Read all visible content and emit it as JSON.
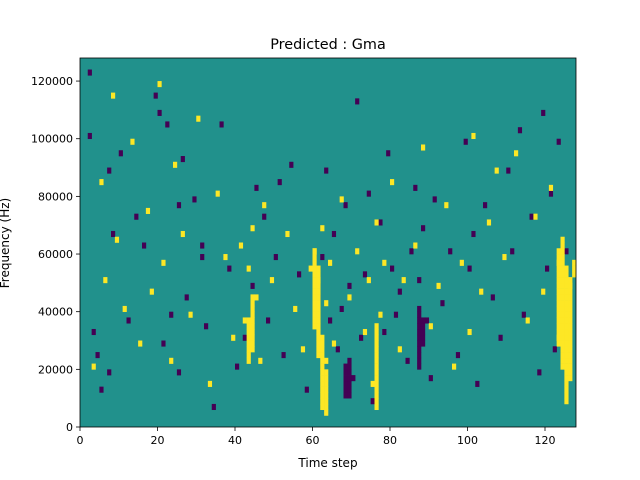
{
  "chart_data": {
    "type": "heatmap",
    "title": "Predicted : Gma",
    "xlabel": "Time step",
    "ylabel": "Frequency (Hz)",
    "xlim": [
      0,
      128
    ],
    "ylim": [
      0,
      128000
    ],
    "xticks": [
      0,
      20,
      40,
      60,
      80,
      100,
      120
    ],
    "yticks": [
      0,
      20000,
      40000,
      60000,
      80000,
      100000,
      120000
    ],
    "ytick_labels": [
      "0",
      "20000",
      "40000",
      "60000",
      "80000",
      "100000",
      "120000"
    ],
    "grid": false,
    "colormap": "viridis",
    "colors": {
      "background": "#21918c",
      "low": "#440154",
      "high": "#fde725"
    },
    "n_time_steps": 128,
    "n_frequency_bins": 64,
    "background_value": 0,
    "low_cells": [
      [
        2,
        61
      ],
      [
        2,
        50
      ],
      [
        7,
        9
      ],
      [
        8,
        33
      ],
      [
        3,
        16
      ],
      [
        4,
        12
      ],
      [
        5,
        6
      ],
      [
        7,
        44
      ],
      [
        10,
        47
      ],
      [
        12,
        18
      ],
      [
        14,
        36
      ],
      [
        16,
        31
      ],
      [
        19,
        57
      ],
      [
        20,
        54
      ],
      [
        21,
        14
      ],
      [
        22,
        52
      ],
      [
        23,
        19
      ],
      [
        25,
        38
      ],
      [
        25,
        9
      ],
      [
        26,
        46
      ],
      [
        27,
        22
      ],
      [
        29,
        39
      ],
      [
        31,
        29
      ],
      [
        31,
        31
      ],
      [
        32,
        17
      ],
      [
        34,
        3
      ],
      [
        36,
        52
      ],
      [
        38,
        27
      ],
      [
        40,
        10
      ],
      [
        42,
        15
      ],
      [
        44,
        24
      ],
      [
        45,
        41
      ],
      [
        47,
        36
      ],
      [
        48,
        18
      ],
      [
        50,
        29
      ],
      [
        51,
        42
      ],
      [
        52,
        12
      ],
      [
        54,
        45
      ],
      [
        56,
        26
      ],
      [
        58,
        6
      ],
      [
        61,
        22
      ],
      [
        62,
        29
      ],
      [
        63,
        44
      ],
      [
        64,
        18
      ],
      [
        65,
        33
      ],
      [
        66,
        13
      ],
      [
        67,
        20
      ],
      [
        68,
        38
      ],
      [
        69,
        24
      ],
      [
        70,
        8
      ],
      [
        71,
        56
      ],
      [
        72,
        15
      ],
      [
        73,
        26
      ],
      [
        74,
        40
      ],
      [
        75,
        4
      ],
      [
        77,
        35
      ],
      [
        78,
        16
      ],
      [
        79,
        47
      ],
      [
        80,
        27
      ],
      [
        81,
        19
      ],
      [
        82,
        23
      ],
      [
        84,
        11
      ],
      [
        85,
        30
      ],
      [
        86,
        41
      ],
      [
        87,
        25
      ],
      [
        88,
        34
      ],
      [
        89,
        18
      ],
      [
        90,
        8
      ],
      [
        91,
        39
      ],
      [
        93,
        21
      ],
      [
        95,
        30
      ],
      [
        97,
        12
      ],
      [
        99,
        49
      ],
      [
        100,
        27
      ],
      [
        101,
        33
      ],
      [
        102,
        7
      ],
      [
        104,
        38
      ],
      [
        106,
        22
      ],
      [
        108,
        15
      ],
      [
        110,
        44
      ],
      [
        111,
        30
      ],
      [
        113,
        51
      ],
      [
        114,
        19
      ],
      [
        116,
        36
      ],
      [
        118,
        9
      ],
      [
        119,
        54
      ],
      [
        120,
        27
      ],
      [
        121,
        40
      ],
      [
        122,
        13
      ],
      [
        123,
        49
      ],
      [
        125,
        30
      ]
    ],
    "high_cells": [
      [
        3,
        10
      ],
      [
        5,
        42
      ],
      [
        6,
        25
      ],
      [
        8,
        57
      ],
      [
        9,
        32
      ],
      [
        11,
        20
      ],
      [
        13,
        49
      ],
      [
        15,
        14
      ],
      [
        17,
        37
      ],
      [
        18,
        23
      ],
      [
        20,
        59
      ],
      [
        21,
        28
      ],
      [
        23,
        11
      ],
      [
        24,
        45
      ],
      [
        26,
        33
      ],
      [
        28,
        19
      ],
      [
        30,
        53
      ],
      [
        33,
        7
      ],
      [
        35,
        40
      ],
      [
        37,
        29
      ],
      [
        39,
        15
      ],
      [
        41,
        31
      ],
      [
        42,
        18
      ],
      [
        43,
        27
      ],
      [
        44,
        34
      ],
      [
        45,
        22
      ],
      [
        46,
        11
      ],
      [
        47,
        38
      ],
      [
        49,
        25
      ],
      [
        53,
        33
      ],
      [
        55,
        20
      ],
      [
        57,
        13
      ],
      [
        59,
        27
      ],
      [
        60,
        17
      ],
      [
        60,
        30
      ],
      [
        61,
        25
      ],
      [
        62,
        34
      ],
      [
        63,
        11
      ],
      [
        63,
        21
      ],
      [
        64,
        28
      ],
      [
        65,
        14
      ],
      [
        67,
        39
      ],
      [
        69,
        22
      ],
      [
        71,
        30
      ],
      [
        73,
        16
      ],
      [
        74,
        25
      ],
      [
        75,
        7
      ],
      [
        76,
        35
      ],
      [
        77,
        19
      ],
      [
        78,
        28
      ],
      [
        80,
        42
      ],
      [
        82,
        13
      ],
      [
        83,
        25
      ],
      [
        86,
        31
      ],
      [
        88,
        48
      ],
      [
        90,
        17
      ],
      [
        92,
        24
      ],
      [
        94,
        38
      ],
      [
        96,
        10
      ],
      [
        98,
        28
      ],
      [
        100,
        16
      ],
      [
        101,
        50
      ],
      [
        103,
        23
      ],
      [
        105,
        35
      ],
      [
        107,
        44
      ],
      [
        109,
        29
      ],
      [
        112,
        47
      ],
      [
        115,
        18
      ],
      [
        117,
        36
      ],
      [
        119,
        23
      ],
      [
        121,
        41
      ],
      [
        123,
        15
      ],
      [
        123,
        28
      ],
      [
        124,
        19
      ],
      [
        124,
        26
      ],
      [
        125,
        12
      ],
      [
        126,
        24
      ]
    ],
    "high_runs": [
      {
        "t": 43,
        "f_start": 11,
        "f_end": 18
      },
      {
        "t": 44,
        "f_start": 13,
        "f_end": 22
      },
      {
        "t": 60,
        "f_start": 17,
        "f_end": 30
      },
      {
        "t": 61,
        "f_start": 12,
        "f_end": 27
      },
      {
        "t": 62,
        "f_start": 3,
        "f_end": 15
      },
      {
        "t": 63,
        "f_start": 2,
        "f_end": 9
      },
      {
        "t": 76,
        "f_start": 3,
        "f_end": 17
      },
      {
        "t": 123,
        "f_start": 14,
        "f_end": 30
      },
      {
        "t": 124,
        "f_start": 10,
        "f_end": 32
      },
      {
        "t": 125,
        "f_start": 4,
        "f_end": 27
      },
      {
        "t": 126,
        "f_start": 8,
        "f_end": 25
      },
      {
        "t": 127,
        "f_start": 26,
        "f_end": 28
      }
    ],
    "low_runs": [
      {
        "t": 68,
        "f_start": 5,
        "f_end": 10
      },
      {
        "t": 69,
        "f_start": 5,
        "f_end": 11
      },
      {
        "t": 87,
        "f_start": 10,
        "f_end": 20
      },
      {
        "t": 88,
        "f_start": 14,
        "f_end": 18
      }
    ]
  }
}
